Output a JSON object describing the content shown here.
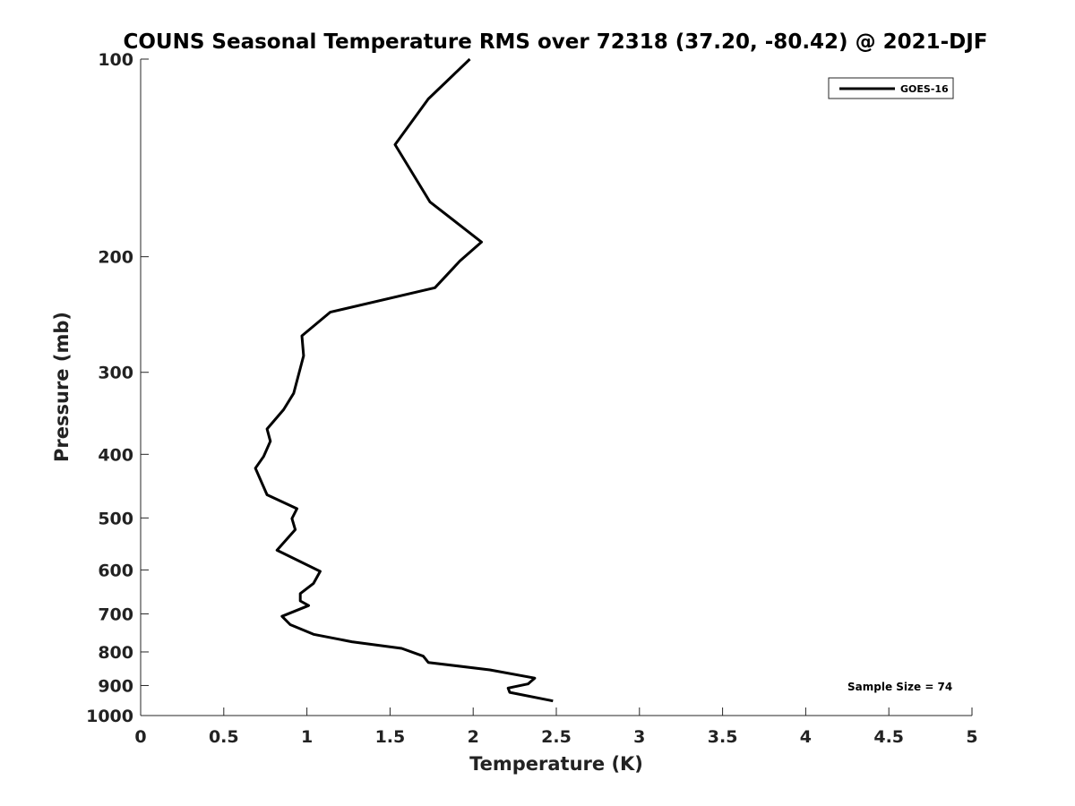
{
  "chart_data": {
    "type": "line",
    "title": "COUNS Seasonal Temperature RMS over 72318 (37.20, -80.42) @ 2021-DJF",
    "xlabel": "Temperature (K)",
    "ylabel": "Pressure (mb)",
    "xlim": [
      0,
      5
    ],
    "ylim": [
      1000,
      100
    ],
    "yscale": "log",
    "x_ticks": [
      0,
      0.5,
      1,
      1.5,
      2,
      2.5,
      3,
      3.5,
      4,
      4.5,
      5
    ],
    "x_tick_labels": [
      "0",
      "0.5",
      "1",
      "1.5",
      "2",
      "2.5",
      "3",
      "3.5",
      "4",
      "4.5",
      "5"
    ],
    "y_ticks": [
      100,
      200,
      300,
      400,
      500,
      600,
      700,
      800,
      900,
      1000
    ],
    "y_tick_labels": [
      "100",
      "200",
      "300",
      "400",
      "500",
      "600",
      "700",
      "800",
      "900",
      "1000"
    ],
    "grid": false,
    "legend_position": "top-right",
    "annotation": "Sample Size = 74",
    "series": [
      {
        "name": "GOES-16",
        "color": "#000000",
        "points": [
          {
            "x": 1.98,
            "y": 100
          },
          {
            "x": 1.73,
            "y": 115
          },
          {
            "x": 1.53,
            "y": 135
          },
          {
            "x": 1.74,
            "y": 165
          },
          {
            "x": 2.05,
            "y": 190
          },
          {
            "x": 1.92,
            "y": 203
          },
          {
            "x": 1.77,
            "y": 223
          },
          {
            "x": 1.14,
            "y": 243
          },
          {
            "x": 0.97,
            "y": 264
          },
          {
            "x": 0.98,
            "y": 283
          },
          {
            "x": 0.92,
            "y": 323
          },
          {
            "x": 0.86,
            "y": 342
          },
          {
            "x": 0.76,
            "y": 366
          },
          {
            "x": 0.78,
            "y": 382
          },
          {
            "x": 0.74,
            "y": 403
          },
          {
            "x": 0.69,
            "y": 420
          },
          {
            "x": 0.76,
            "y": 461
          },
          {
            "x": 0.94,
            "y": 484
          },
          {
            "x": 0.91,
            "y": 501
          },
          {
            "x": 0.93,
            "y": 521
          },
          {
            "x": 0.82,
            "y": 560
          },
          {
            "x": 1.08,
            "y": 603
          },
          {
            "x": 1.04,
            "y": 629
          },
          {
            "x": 0.96,
            "y": 652
          },
          {
            "x": 0.96,
            "y": 669
          },
          {
            "x": 1.01,
            "y": 680
          },
          {
            "x": 0.85,
            "y": 706
          },
          {
            "x": 0.9,
            "y": 727
          },
          {
            "x": 1.04,
            "y": 752
          },
          {
            "x": 1.27,
            "y": 772
          },
          {
            "x": 1.57,
            "y": 790
          },
          {
            "x": 1.7,
            "y": 812
          },
          {
            "x": 1.73,
            "y": 830
          },
          {
            "x": 2.1,
            "y": 852
          },
          {
            "x": 2.37,
            "y": 877
          },
          {
            "x": 2.33,
            "y": 895
          },
          {
            "x": 2.21,
            "y": 908
          },
          {
            "x": 2.22,
            "y": 922
          },
          {
            "x": 2.48,
            "y": 950
          }
        ]
      }
    ]
  }
}
